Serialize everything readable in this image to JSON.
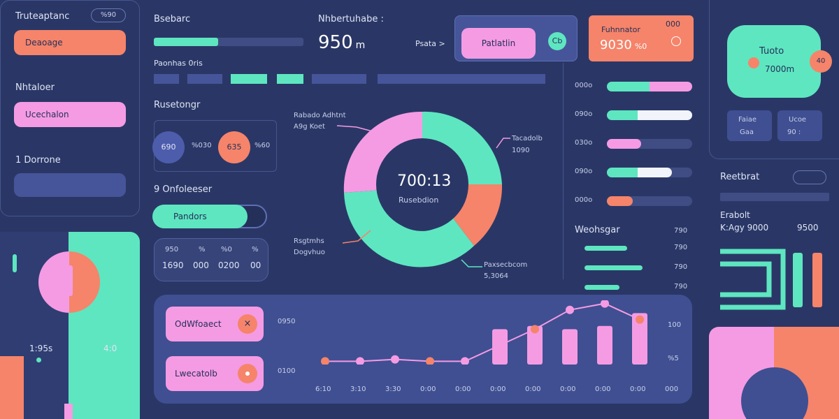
{
  "colors": {
    "mint": "#5ee6c0",
    "pink": "#f59be3",
    "coral": "#f5846a",
    "navy": "#46559a",
    "bg": "#2a3766"
  },
  "left": {
    "title": "Truteaptanc",
    "badge": "%90",
    "btn1": "Deaoage",
    "section2": "Nhtaloer",
    "btn2": "Ucechalon",
    "section3": "1  Dorrone"
  },
  "left_chart": {
    "val1": "1:95s",
    "val2": "4:0"
  },
  "top": {
    "title": "Bsebarc",
    "sub": "Paonhas 0ris",
    "progress": 0.42
  },
  "center_header": {
    "title": "Nhbertuhabe :",
    "value": "950",
    "unit": "m",
    "link": "Psata  >"
  },
  "toggle_card": {
    "label": "Patlatlin",
    "icon": "Cb"
  },
  "stat_card": {
    "title": "Fuhnnator",
    "value": "9030",
    "unit": "%0",
    "badge": "000"
  },
  "mint_card": {
    "label": "Tuoto",
    "value": "7000m",
    "badge": "40"
  },
  "mini_cards": [
    {
      "a": "Faiae",
      "b": "Gaa"
    },
    {
      "a": "Ucoe",
      "b": "90 :"
    }
  ],
  "buttons_card": {
    "title": "Rusetongr",
    "c1": "690",
    "c1_lbl": "%030",
    "c2": "635",
    "c2_lbl": "%60"
  },
  "progress_card": {
    "title": "9  Onfoleeser",
    "label": "Pandors",
    "value": 0.8
  },
  "numbers_card": {
    "r1": [
      "950",
      "%",
      "%0",
      "%"
    ],
    "r2": [
      "1690",
      "000",
      "0200",
      "00"
    ]
  },
  "donut": {
    "center": "700:13",
    "sub": "Rusebdion",
    "l1": "Rabado Adhtnt",
    "l1b": "A9g Koet",
    "l2": "Tacadolb",
    "l2b": "1090",
    "l3": "Rsgtmhs",
    "l3b": "Dogvhuo",
    "l4": "Paxsecbcom",
    "l4b": "5,3064"
  },
  "hbars": {
    "rows": [
      {
        "label": "000o",
        "mint": 0.5,
        "rest": 0.5,
        "color": "pink"
      },
      {
        "label": "090o",
        "mint": 0.36,
        "rest": 0.64,
        "color": "white"
      },
      {
        "label": "030o",
        "mint": 0.0,
        "rest": 0.4,
        "color": "pink"
      },
      {
        "label": "090o",
        "mint": 0.36,
        "rest": 0.4,
        "color": "white"
      },
      {
        "label": "000o",
        "mint": 0.0,
        "rest": 0.3,
        "color": "coral"
      }
    ]
  },
  "weight": {
    "title": "Weohsgar",
    "v1": "790",
    "rows": [
      {
        "value": 0.55,
        "label": "790"
      },
      {
        "value": 0.75,
        "label": "790"
      },
      {
        "value": 0.45,
        "label": "790"
      }
    ]
  },
  "right_info": {
    "title": "Reetbrat",
    "r1a": "Erabolt",
    "r2a": "K:Agy 9000",
    "r2b": "9500"
  },
  "bottom": {
    "btn1": "OdWfoaect",
    "btn2": "Lwecatolb",
    "y_top": "0950",
    "y_bot": "0100",
    "y_right_top": "100",
    "y_right_bot": "%5",
    "ticks": [
      "6:10",
      "3:10",
      "3:30",
      "0:00",
      "0:00",
      "0:00",
      "0:00",
      "0:00",
      "0:00",
      "0:00",
      "000"
    ]
  },
  "chart_data": {
    "type": "bar",
    "categories": [
      "6:10",
      "3:10",
      "3:30",
      "0:00",
      "0:00",
      "0:00",
      "0:00",
      "0:00",
      "0:00",
      "0:00"
    ],
    "bar_values": [
      0,
      0,
      0,
      0,
      0,
      55,
      60,
      55,
      60,
      80
    ],
    "line_values": [
      5,
      5,
      8,
      5,
      5,
      30,
      55,
      85,
      95,
      70
    ],
    "ylim": [
      0,
      100
    ]
  }
}
